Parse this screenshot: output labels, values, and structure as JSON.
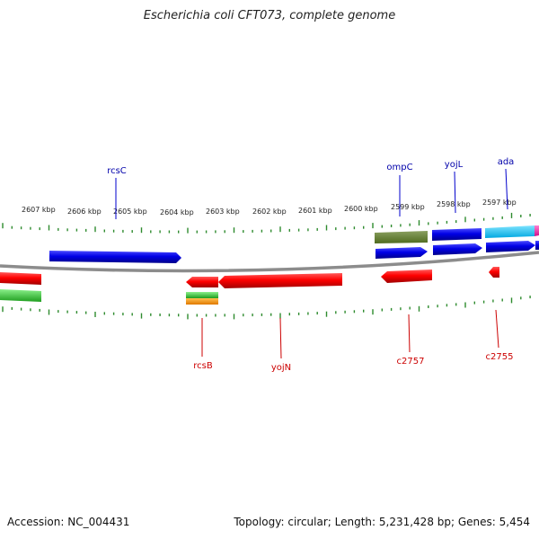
{
  "title": "Escherichia coli CFT073, complete genome",
  "footer": {
    "accession": "Accession: NC_004431",
    "summary": "Topology: circular; Length: 5,231,428 bp; Genes: 5,454"
  },
  "colors": {
    "backbone": "#8c8c8c",
    "tick": "#2e8b2e",
    "forward_gene": "#0000e6",
    "reverse_gene": "#ff0000",
    "forward_label": "#0000aa",
    "reverse_label": "#cc0000"
  },
  "scale_labels": [
    "2607 kbp",
    "2606 kbp",
    "2605 kbp",
    "2604 kbp",
    "2603 kbp",
    "2602 kbp",
    "2601 kbp",
    "2600 kbp",
    "2599 kbp",
    "2598 kbp",
    "2597 kbp"
  ],
  "gene_labels": {
    "forward": [
      "rcsC",
      "ompC",
      "yojL",
      "ada"
    ],
    "reverse": [
      "rcsB",
      "yojN",
      "c2757",
      "c2755"
    ]
  }
}
